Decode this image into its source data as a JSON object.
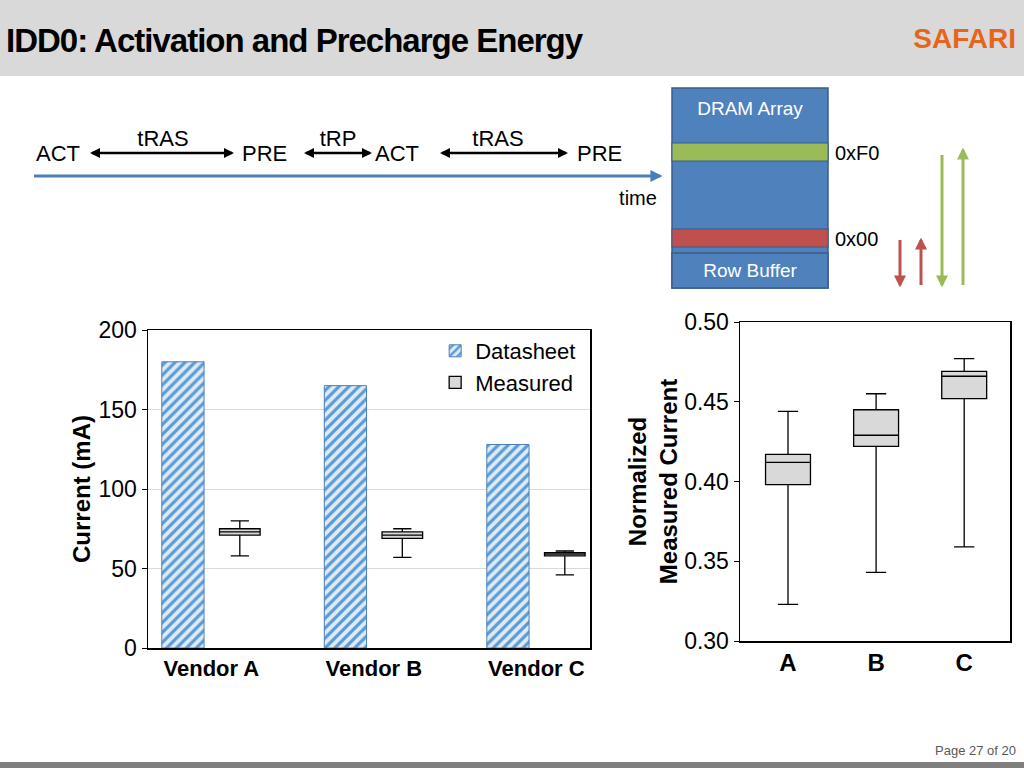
{
  "header": {
    "title": "IDD0: Activation and Precharge Energy",
    "logo": "SAFARI"
  },
  "timeline": {
    "sequence": [
      "ACT",
      "tRAS",
      "PRE",
      "tRP",
      "ACT",
      "tRAS",
      "PRE"
    ],
    "axis_label": "time"
  },
  "diagram": {
    "title": "DRAM Array",
    "rows": [
      {
        "label": "0xF0"
      },
      {
        "label": "0x00"
      }
    ],
    "buffer": "Row Buffer"
  },
  "chart_data": [
    {
      "type": "bar",
      "y_label": "Current (mA)",
      "categories": [
        "Vendor A",
        "Vendor B",
        "Vendor C"
      ],
      "series": [
        {
          "name": "Datasheet",
          "type": "bar",
          "color": "#5b9bd5",
          "values": [
            180,
            165,
            128
          ]
        },
        {
          "name": "Measured",
          "type": "box",
          "color": "#d9d9d9",
          "min": [
            58,
            57,
            46
          ],
          "q1": [
            71,
            69,
            58
          ],
          "median": [
            73,
            71,
            59
          ],
          "q3": [
            75,
            73,
            60
          ],
          "max": [
            80,
            75,
            61
          ]
        }
      ],
      "ylim": [
        0,
        200
      ],
      "yticks": [
        0,
        50,
        100,
        150,
        200
      ],
      "grid": true,
      "legend": "top right"
    },
    {
      "type": "box",
      "y_label": [
        "Normalized",
        "Measured Current"
      ],
      "categories": [
        "A",
        "B",
        "C"
      ],
      "series": [
        {
          "type": "box",
          "color": "#d9d9d9",
          "min": [
            0.323,
            0.343,
            0.359
          ],
          "q1": [
            0.398,
            0.422,
            0.452
          ],
          "median": [
            0.412,
            0.429,
            0.466
          ],
          "q3": [
            0.417,
            0.445,
            0.469
          ],
          "max": [
            0.444,
            0.455,
            0.477
          ]
        }
      ],
      "ylim": [
        0.3,
        0.5
      ],
      "yticks": [
        {
          "value": 0.3,
          "label": "0.30"
        },
        0.35,
        {
          "value": 0.4,
          "label": "0.40"
        },
        0.45,
        {
          "value": 0.5,
          "label": "0.50"
        }
      ],
      "grid": false
    }
  ],
  "footer": "Page 27 of 20"
}
